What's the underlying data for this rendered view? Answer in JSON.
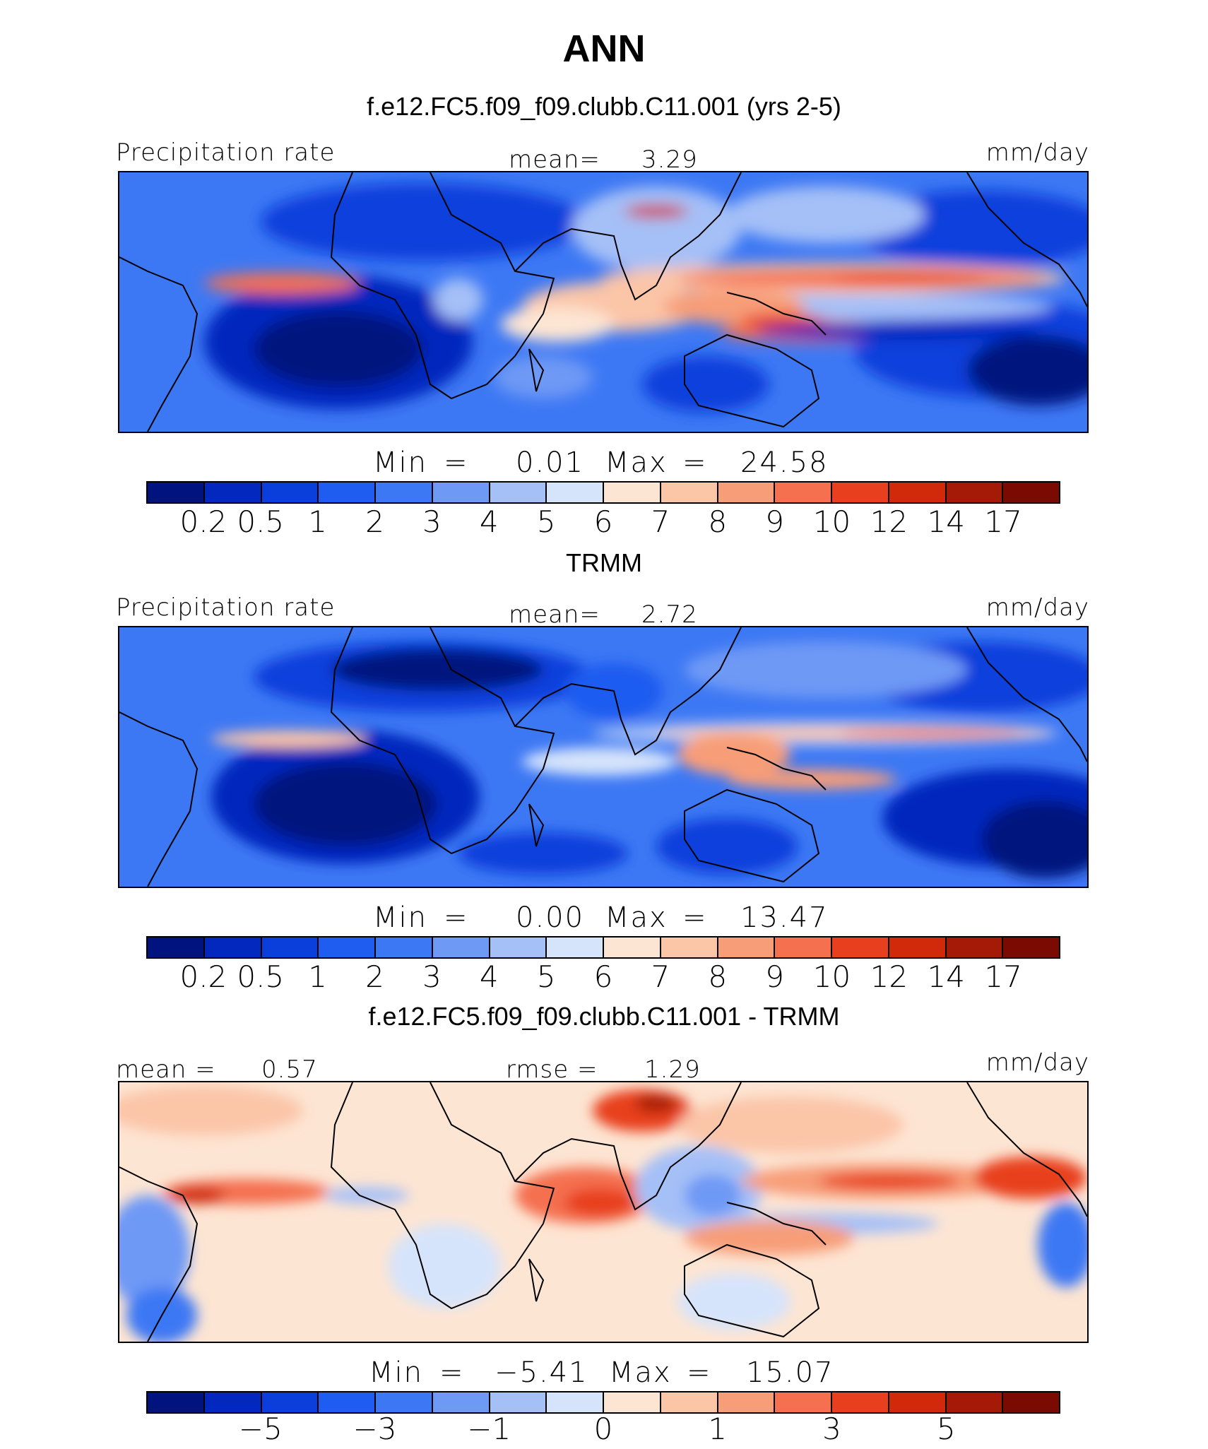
{
  "page_title": "ANN",
  "panels": [
    {
      "subtitle": "f.e12.FC5.f09_f09.clubb.C11.001 (yrs 2-5)",
      "left_label": "Precipitation rate",
      "center_label": "mean=",
      "center_value": "3.29",
      "right_label": "mm/day",
      "min_label": "Min",
      "min_value": "0.01",
      "max_label": "Max",
      "max_value": "24.58",
      "colorbar_ticks": [
        "0.2",
        "0.5",
        "1",
        "2",
        "3",
        "4",
        "5",
        "6",
        "7",
        "8",
        "9",
        "10",
        "12",
        "14",
        "17"
      ]
    },
    {
      "subtitle": "TRMM",
      "left_label": "Precipitation rate",
      "center_label": "mean=",
      "center_value": "2.72",
      "right_label": "mm/day",
      "min_label": "Min",
      "min_value": "0.00",
      "max_label": "Max",
      "max_value": "13.47",
      "colorbar_ticks": [
        "0.2",
        "0.5",
        "1",
        "2",
        "3",
        "4",
        "5",
        "6",
        "7",
        "8",
        "9",
        "10",
        "12",
        "14",
        "17"
      ]
    },
    {
      "subtitle": "f.e12.FC5.f09_f09.clubb.C11.001 - TRMM",
      "left_label": "mean =",
      "left_value": "0.57",
      "center_label": "rmse =",
      "center_value": "1.29",
      "right_label": "mm/day",
      "min_label": "Min",
      "min_value": "−5.41",
      "max_label": "Max",
      "max_value": "15.07",
      "colorbar_ticks": [
        "−5",
        "−3",
        "−1",
        "0",
        "1",
        "3",
        "5"
      ]
    }
  ],
  "colorbar_colors": [
    "#00137f",
    "#0228bd",
    "#0b3fdc",
    "#1f5cf0",
    "#3d78f4",
    "#6e99f5",
    "#a5c0f7",
    "#d6e4fb",
    "#fde5d3",
    "#fbc5a8",
    "#f79d78",
    "#f4704f",
    "#e8401f",
    "#d02a0a",
    "#a51a06",
    "#7a0a02"
  ],
  "chart_data": [
    {
      "type": "heatmap",
      "title": "f.e12.FC5.f09_f09.clubb.C11.001 (yrs 2-5)",
      "variable": "Precipitation rate",
      "units": "mm/day",
      "mean": 3.29,
      "min": 0.01,
      "max": 24.58,
      "contour_levels": [
        0.2,
        0.5,
        1,
        2,
        3,
        4,
        5,
        6,
        7,
        8,
        9,
        10,
        12,
        14,
        17
      ]
    },
    {
      "type": "heatmap",
      "title": "TRMM",
      "variable": "Precipitation rate",
      "units": "mm/day",
      "mean": 2.72,
      "min": 0.0,
      "max": 13.47,
      "contour_levels": [
        0.2,
        0.5,
        1,
        2,
        3,
        4,
        5,
        6,
        7,
        8,
        9,
        10,
        12,
        14,
        17
      ]
    },
    {
      "type": "heatmap",
      "title": "f.e12.FC5.f09_f09.clubb.C11.001 - TRMM",
      "units": "mm/day",
      "mean": 0.57,
      "rmse": 1.29,
      "min": -5.41,
      "max": 15.07,
      "colorbar_labels": [
        -5,
        -3,
        -1,
        0,
        1,
        3,
        5
      ]
    }
  ]
}
